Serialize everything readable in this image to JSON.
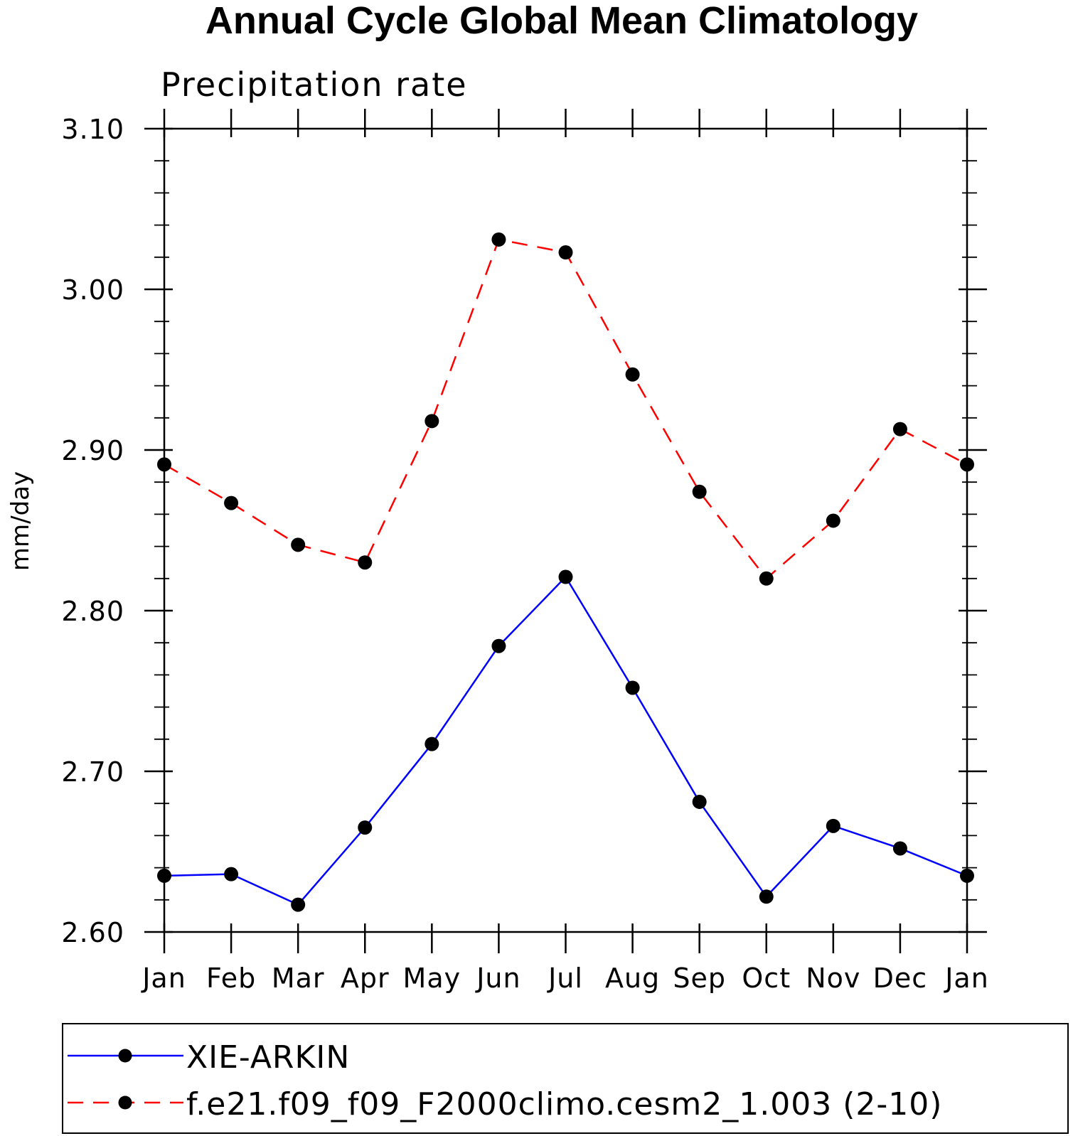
{
  "chart_data": {
    "type": "line",
    "title": "Annual Cycle Global Mean Climatology",
    "subtitle": "Precipitation rate",
    "ylabel": "mm/day",
    "xlabel": "",
    "categories": [
      "Jan",
      "Feb",
      "Mar",
      "Apr",
      "May",
      "Jun",
      "Jul",
      "Aug",
      "Sep",
      "Oct",
      "Nov",
      "Dec",
      "Jan"
    ],
    "ylim": [
      2.6,
      3.1
    ],
    "yticks": [
      "2.60",
      "2.70",
      "2.80",
      "2.90",
      "3.00",
      "3.10"
    ],
    "ytick_values": [
      2.6,
      2.7,
      2.8,
      2.9,
      3.0,
      3.1
    ],
    "series": [
      {
        "name": "XIE-ARKIN",
        "color": "#0000ff",
        "dash": "solid",
        "values": [
          2.635,
          2.636,
          2.617,
          2.665,
          2.717,
          2.778,
          2.821,
          2.752,
          2.681,
          2.622,
          2.666,
          2.652,
          2.635
        ]
      },
      {
        "name": "f.e21.f09_f09_F2000climo.cesm2_1.003 (2-10)",
        "color": "#ff0000",
        "dash": "dashed",
        "values": [
          2.891,
          2.867,
          2.841,
          2.83,
          2.918,
          3.031,
          3.023,
          2.947,
          2.874,
          2.82,
          2.856,
          2.913,
          2.891
        ]
      }
    ],
    "legend": "bottom"
  }
}
